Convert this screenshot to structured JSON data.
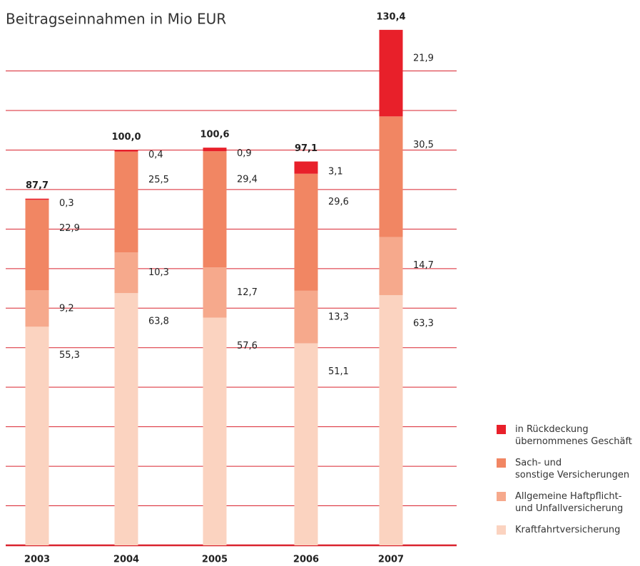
{
  "chart_data": {
    "type": "stacked_bar",
    "title": "Beitragseinnahmen in Mio EUR",
    "categories": [
      "2003",
      "2004",
      "2005",
      "2006",
      "2007"
    ],
    "series": [
      {
        "name": "Kraftfahrtversicherung",
        "color": "#fbd3c0",
        "values": [
          55.3,
          63.8,
          57.6,
          51.1,
          63.3
        ],
        "value_labels": [
          "55,3",
          "63,8",
          "57,6",
          "51,1",
          "63,3"
        ]
      },
      {
        "name": "Allgemeine Haftpflicht-\nund Unfallversicherung",
        "color": "#f6a98c",
        "values": [
          9.2,
          10.3,
          12.7,
          13.3,
          14.7
        ],
        "value_labels": [
          "9,2",
          "10,3",
          "12,7",
          "13,3",
          "14,7"
        ]
      },
      {
        "name": "Sach- und\nsonstige Versicherungen",
        "color": "#f18663",
        "values": [
          22.9,
          25.5,
          29.4,
          29.6,
          30.5
        ],
        "value_labels": [
          "22,9",
          "25,5",
          "29,4",
          "29,6",
          "30,5"
        ]
      },
      {
        "name": "in Rückdeckung\nübernommenes Geschäft",
        "color": "#e8202a",
        "values": [
          0.3,
          0.4,
          0.9,
          3.1,
          21.9
        ],
        "value_labels": [
          "0,3",
          "0,4",
          "0,9",
          "3,1",
          "21,9"
        ]
      }
    ],
    "totals": [
      87.7,
      100.0,
      100.6,
      97.1,
      130.4
    ],
    "total_labels": [
      "87,7",
      "100,0",
      "100,6",
      "97,1",
      "130,4"
    ],
    "ylim": [
      0,
      132
    ],
    "yticks": [
      0,
      10,
      20,
      30,
      40,
      50,
      60,
      70,
      80,
      90,
      100,
      110,
      120
    ],
    "grid": true,
    "grid_color": "#d9232e",
    "legend": "lower right"
  }
}
